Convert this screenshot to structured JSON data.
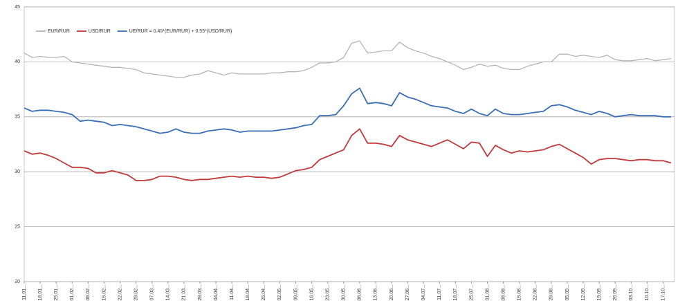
{
  "chart_data": {
    "type": "line",
    "categories": [
      "11.01...",
      null,
      "18.01...",
      null,
      "25.01...",
      null,
      "01.02...",
      null,
      "08.02...",
      null,
      "15.02...",
      null,
      "22.02...",
      null,
      "29.02...",
      null,
      "07.03...",
      null,
      "14.03...",
      null,
      "21.03...",
      null,
      "28.03...",
      null,
      "04.04...",
      null,
      "11.04...",
      null,
      "18.04...",
      null,
      "25.04...",
      null,
      "02.05...",
      null,
      "09.05...",
      null,
      "16.05...",
      null,
      "23.05...",
      null,
      "30.05...",
      null,
      "06.06...",
      null,
      "13.06...",
      null,
      "20.06...",
      null,
      "27.06...",
      null,
      "04.07...",
      null,
      "11.07...",
      null,
      "18.07...",
      null,
      "25.07...",
      null,
      "01.08...",
      null,
      "08.08...",
      null,
      "15.08...",
      null,
      "22.08...",
      null,
      "29.08...",
      null,
      "05.09...",
      null,
      "12.09...",
      null,
      "19.09...",
      null,
      "26.09...",
      null,
      "03.10...",
      null,
      "10.10...",
      null,
      "17.10...",
      null
    ],
    "series": [
      {
        "name": "EUR/RUR",
        "color": "#b4b4b4",
        "values": [
          40.8,
          40.4,
          40.5,
          40.4,
          40.4,
          40.5,
          40.0,
          39.9,
          39.8,
          39.7,
          39.6,
          39.5,
          39.5,
          39.4,
          39.3,
          39.0,
          38.9,
          38.8,
          38.7,
          38.6,
          38.6,
          38.8,
          38.9,
          39.2,
          39.0,
          38.8,
          39.0,
          38.9,
          38.9,
          38.9,
          38.9,
          39.0,
          39.0,
          39.1,
          39.1,
          39.2,
          39.5,
          39.9,
          39.9,
          40.0,
          40.4,
          41.7,
          41.9,
          40.8,
          40.9,
          41.0,
          41.0,
          41.8,
          41.3,
          41.0,
          40.8,
          40.5,
          40.3,
          40.0,
          39.7,
          39.3,
          39.5,
          39.8,
          39.6,
          39.7,
          39.4,
          39.3,
          39.3,
          39.6,
          39.8,
          40.0,
          40.0,
          40.7,
          40.7,
          40.5,
          40.6,
          40.5,
          40.4,
          40.6,
          40.2,
          40.1,
          40.1,
          40.2,
          40.3,
          40.1,
          40.2,
          40.3
        ]
      },
      {
        "name": "USD/RUR",
        "color": "#c0393b",
        "values": [
          31.9,
          31.6,
          31.7,
          31.5,
          31.2,
          30.8,
          30.4,
          30.4,
          30.3,
          29.9,
          29.9,
          30.1,
          29.9,
          29.7,
          29.2,
          29.2,
          29.3,
          29.6,
          29.6,
          29.5,
          29.3,
          29.2,
          29.3,
          29.3,
          29.4,
          29.5,
          29.6,
          29.5,
          29.6,
          29.5,
          29.5,
          29.4,
          29.5,
          29.8,
          30.1,
          30.2,
          30.4,
          31.1,
          31.4,
          31.7,
          32.0,
          33.3,
          33.9,
          32.6,
          32.6,
          32.5,
          32.3,
          33.3,
          32.9,
          32.7,
          32.5,
          32.3,
          32.6,
          32.9,
          32.5,
          32.1,
          32.7,
          32.6,
          31.4,
          32.4,
          32.0,
          31.7,
          31.9,
          31.8,
          31.9,
          32.0,
          32.3,
          32.5,
          32.1,
          31.7,
          31.3,
          30.7,
          31.1,
          31.2,
          31.2,
          31.1,
          31.0,
          31.1,
          31.1,
          31.0,
          31.0,
          30.8
        ]
      },
      {
        "name": "UE/RUR = 0.45*(EUR/RUR) + 0.55*(USD/RUR)",
        "color": "#3a6db3",
        "values": [
          35.8,
          35.5,
          35.6,
          35.6,
          35.5,
          35.4,
          35.2,
          34.6,
          34.7,
          34.6,
          34.5,
          34.2,
          34.3,
          34.2,
          34.1,
          33.9,
          33.7,
          33.5,
          33.6,
          33.9,
          33.6,
          33.5,
          33.5,
          33.7,
          33.8,
          33.9,
          33.8,
          33.6,
          33.7,
          33.7,
          33.7,
          33.7,
          33.8,
          33.9,
          34.0,
          34.2,
          34.3,
          35.1,
          35.1,
          35.2,
          36.0,
          37.1,
          37.6,
          36.2,
          36.3,
          36.2,
          36.0,
          37.2,
          36.8,
          36.6,
          36.3,
          36.0,
          35.9,
          35.8,
          35.5,
          35.3,
          35.7,
          35.3,
          35.1,
          35.7,
          35.3,
          35.2,
          35.2,
          35.3,
          35.4,
          35.5,
          36.0,
          36.1,
          35.9,
          35.6,
          35.4,
          35.2,
          35.5,
          35.3,
          35.0,
          35.1,
          35.2,
          35.1,
          35.1,
          35.1,
          35.0,
          35.0
        ]
      }
    ],
    "ylim": [
      20,
      45
    ],
    "yticks": [
      20,
      25,
      30,
      35,
      40,
      45
    ],
    "grid": true,
    "legend": "top-left"
  }
}
